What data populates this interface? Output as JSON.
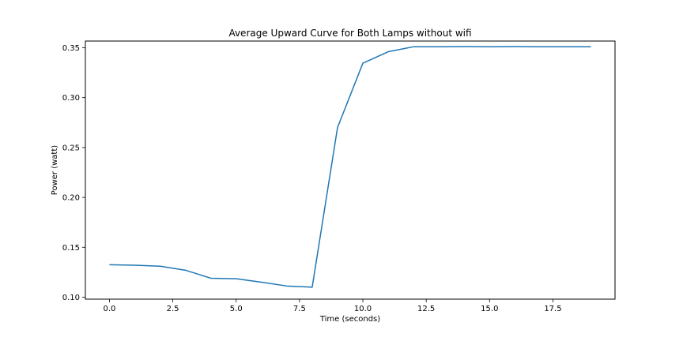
{
  "chart_data": {
    "type": "line",
    "title": "Average Upward Curve for Both Lamps without wifi",
    "xlabel": "Time (seconds)",
    "ylabel": "Power (watt)",
    "xlim": [
      -0.95,
      19.95
    ],
    "ylim": [
      0.098,
      0.3567
    ],
    "x_ticks": [
      0.0,
      2.5,
      5.0,
      7.5,
      10.0,
      12.5,
      15.0,
      17.5
    ],
    "x_tick_labels": [
      "0.0",
      "2.5",
      "5.0",
      "7.5",
      "10.0",
      "12.5",
      "15.0",
      "17.5"
    ],
    "y_ticks": [
      0.1,
      0.15,
      0.2,
      0.25,
      0.3,
      0.35
    ],
    "y_tick_labels": [
      "0.10",
      "0.15",
      "0.20",
      "0.25",
      "0.30",
      "0.35"
    ],
    "grid": false,
    "series": [
      {
        "color": "#1f77b4",
        "x": [
          0,
          1,
          2,
          3,
          4,
          5,
          6,
          7,
          8,
          9,
          10,
          11,
          12,
          13,
          14,
          15,
          16,
          17,
          18,
          19
        ],
        "y": [
          0.1325,
          0.132,
          0.131,
          0.127,
          0.119,
          0.1185,
          0.115,
          0.1112,
          0.11,
          0.27,
          0.3345,
          0.346,
          0.351,
          0.351,
          0.3512,
          0.351,
          0.3512,
          0.351,
          0.351,
          0.351
        ]
      }
    ]
  }
}
